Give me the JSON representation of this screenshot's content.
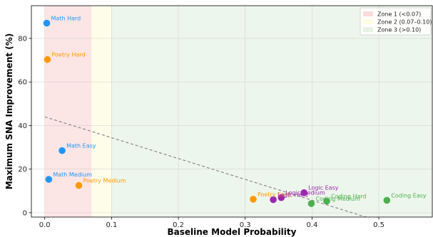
{
  "chart_data": {
    "type": "scatter",
    "xlabel": "Baseline Model Probability",
    "ylabel": "Maximum SNA Improvement (%)",
    "xlim": [
      -0.02,
      0.58
    ],
    "ylim": [
      -2,
      95
    ],
    "xticks": [
      0.0,
      0.1,
      0.2,
      0.3,
      0.4,
      0.5
    ],
    "xtick_labels": [
      "0.0",
      "0.1",
      "0.2",
      "0.3",
      "0.4",
      "0.5"
    ],
    "yticks": [
      0,
      20,
      40,
      60,
      80
    ],
    "ytick_labels": [
      "0",
      "20",
      "40",
      "60",
      "80"
    ],
    "grid": true,
    "legend_position": "top-right",
    "zones": [
      {
        "label": "Zone 1 (<0.07)",
        "x0": 0.0,
        "x1": 0.07,
        "color": "#f9c5c5"
      },
      {
        "label": "Zone 2 (0.07–0.10)",
        "x0": 0.07,
        "x1": 0.1,
        "color": "#fdfbd0"
      },
      {
        "label": "Zone 3 (>0.10)",
        "x0": 0.1,
        "x1": 0.58,
        "color": "#d8ead5"
      }
    ],
    "trend_line": {
      "x": [
        0.0,
        0.58
      ],
      "y": [
        44.0,
        -11.5
      ],
      "color": "#888888",
      "style": "dashed"
    },
    "points": [
      {
        "label": "Math Hard",
        "x": 0.003,
        "y": 87.0,
        "color": "#2196f3"
      },
      {
        "label": "Poetry Hard",
        "x": 0.004,
        "y": 70.3,
        "color": "#ff9800"
      },
      {
        "label": "Math Easy",
        "x": 0.026,
        "y": 28.5,
        "color": "#2196f3"
      },
      {
        "label": "Math Medium",
        "x": 0.006,
        "y": 15.3,
        "color": "#2196f3"
      },
      {
        "label": "Poetry Medium",
        "x": 0.051,
        "y": 12.5,
        "color": "#ff9800"
      },
      {
        "label": "Poetry Easy",
        "x": 0.312,
        "y": 6.2,
        "color": "#ff9800"
      },
      {
        "label": "Logic Hard",
        "x": 0.342,
        "y": 6.0,
        "color": "#9c27b0"
      },
      {
        "label": "Logic Medium",
        "x": 0.354,
        "y": 6.9,
        "color": "#9c27b0"
      },
      {
        "label": "Logic Easy",
        "x": 0.388,
        "y": 9.2,
        "color": "#9c27b0"
      },
      {
        "label": "Coding Medium",
        "x": 0.399,
        "y": 4.2,
        "color": "#4caf50"
      },
      {
        "label": "Coding Hard",
        "x": 0.422,
        "y": 5.3,
        "color": "#4caf50"
      },
      {
        "label": "Coding Easy",
        "x": 0.512,
        "y": 5.7,
        "color": "#4caf50"
      }
    ]
  }
}
